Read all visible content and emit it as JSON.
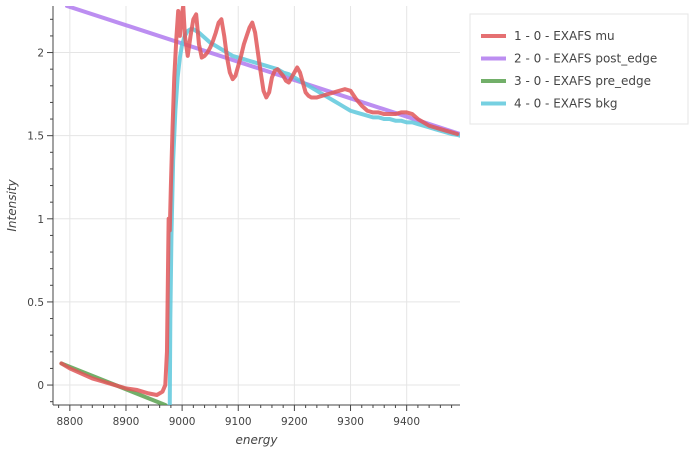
{
  "chart_data": {
    "type": "line",
    "xlabel": "energy",
    "ylabel": "Intensity",
    "xlim": [
      8770,
      9495
    ],
    "ylim": [
      -0.12,
      2.28
    ],
    "x_ticks": [
      8800,
      8900,
      9000,
      9100,
      9200,
      9300,
      9400
    ],
    "y_ticks": [
      0,
      0.5,
      1,
      1.5,
      2
    ],
    "grid": true,
    "legend_position": "top-right outside",
    "series": [
      {
        "name": "1 - 0 - EXAFS mu",
        "color": "#e15759",
        "x": [
          8785,
          8800,
          8820,
          8840,
          8860,
          8880,
          8900,
          8920,
          8940,
          8955,
          8965,
          8970,
          8973,
          8976,
          8978,
          8980,
          8983,
          8986,
          8990,
          8993,
          8996,
          8999,
          9002,
          9005,
          9010,
          9015,
          9020,
          9025,
          9030,
          9035,
          9040,
          9045,
          9050,
          9055,
          9060,
          9065,
          9070,
          9075,
          9080,
          9085,
          9090,
          9095,
          9100,
          9105,
          9110,
          9115,
          9120,
          9125,
          9130,
          9135,
          9140,
          9145,
          9150,
          9155,
          9160,
          9165,
          9170,
          9175,
          9180,
          9185,
          9190,
          9195,
          9200,
          9205,
          9210,
          9215,
          9220,
          9225,
          9230,
          9240,
          9250,
          9260,
          9270,
          9280,
          9290,
          9300,
          9310,
          9320,
          9330,
          9340,
          9350,
          9360,
          9370,
          9380,
          9390,
          9400,
          9410,
          9420,
          9430,
          9440,
          9450,
          9460,
          9470,
          9480,
          9490
        ],
        "y": [
          0.13,
          0.1,
          0.07,
          0.04,
          0.02,
          0.0,
          -0.02,
          -0.03,
          -0.05,
          -0.06,
          -0.04,
          0.0,
          0.2,
          1.0,
          0.93,
          1.2,
          1.55,
          1.85,
          2.1,
          2.25,
          2.1,
          2.22,
          2.28,
          2.1,
          1.98,
          2.1,
          2.2,
          2.23,
          2.05,
          1.97,
          1.98,
          2.0,
          2.03,
          2.07,
          2.12,
          2.18,
          2.2,
          2.1,
          1.97,
          1.88,
          1.84,
          1.86,
          1.92,
          1.98,
          2.05,
          2.1,
          2.15,
          2.18,
          2.12,
          2.0,
          1.88,
          1.77,
          1.73,
          1.76,
          1.85,
          1.89,
          1.9,
          1.88,
          1.86,
          1.83,
          1.82,
          1.85,
          1.88,
          1.91,
          1.88,
          1.82,
          1.76,
          1.74,
          1.73,
          1.73,
          1.74,
          1.75,
          1.76,
          1.77,
          1.78,
          1.77,
          1.72,
          1.68,
          1.65,
          1.64,
          1.64,
          1.63,
          1.63,
          1.63,
          1.64,
          1.64,
          1.63,
          1.6,
          1.58,
          1.56,
          1.55,
          1.54,
          1.53,
          1.52,
          1.51
        ]
      },
      {
        "name": "2 - 0 - EXAFS post_edge",
        "color": "#b07aee",
        "x": [
          8795,
          9495
        ],
        "y": [
          2.28,
          1.51
        ]
      },
      {
        "name": "3 - 0 - EXAFS pre_edge",
        "color": "#59a14f",
        "x": [
          8785,
          8970
        ],
        "y": [
          0.13,
          -0.12
        ]
      },
      {
        "name": "4 - 0 - EXAFS bkg",
        "color": "#5ec8dc",
        "x": [
          8978,
          8979,
          8981,
          8984,
          8988,
          8992,
          8996,
          9000,
          9005,
          9010,
          9015,
          9020,
          9030,
          9040,
          9050,
          9060,
          9070,
          9080,
          9090,
          9100,
          9110,
          9120,
          9130,
          9140,
          9150,
          9160,
          9170,
          9180,
          9190,
          9200,
          9210,
          9220,
          9230,
          9240,
          9250,
          9260,
          9270,
          9280,
          9290,
          9300,
          9310,
          9320,
          9330,
          9340,
          9350,
          9360,
          9370,
          9380,
          9390,
          9400,
          9410,
          9420,
          9430,
          9440,
          9450,
          9460,
          9470,
          9480,
          9490,
          9495
        ],
        "y": [
          -0.12,
          0.4,
          0.9,
          1.35,
          1.65,
          1.85,
          1.97,
          2.05,
          2.1,
          2.13,
          2.14,
          2.14,
          2.12,
          2.09,
          2.06,
          2.04,
          2.02,
          2.0,
          1.98,
          1.97,
          1.96,
          1.95,
          1.94,
          1.93,
          1.92,
          1.91,
          1.9,
          1.88,
          1.87,
          1.85,
          1.83,
          1.81,
          1.79,
          1.77,
          1.75,
          1.73,
          1.71,
          1.69,
          1.67,
          1.65,
          1.64,
          1.63,
          1.62,
          1.61,
          1.61,
          1.6,
          1.6,
          1.59,
          1.59,
          1.58,
          1.58,
          1.57,
          1.56,
          1.55,
          1.54,
          1.53,
          1.52,
          1.51,
          1.505,
          1.5
        ]
      }
    ]
  }
}
